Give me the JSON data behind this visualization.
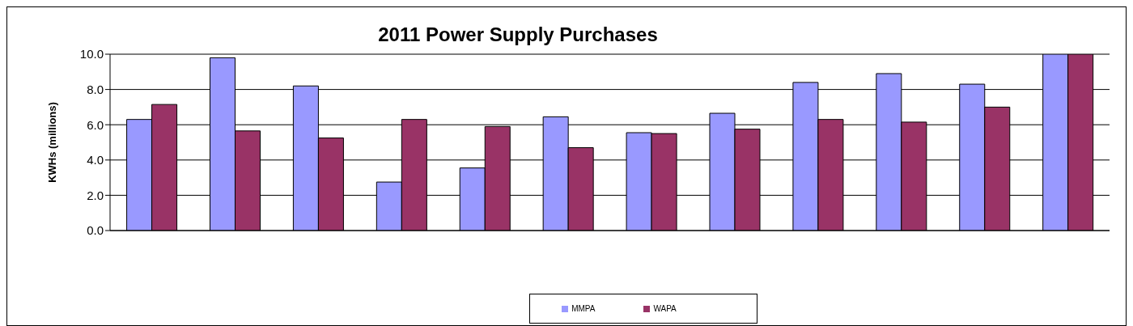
{
  "chart_data": {
    "type": "bar",
    "title": "2011 Power Supply Purchases",
    "ylabel": "KWHs (millions)",
    "categories": [
      null,
      null,
      null,
      null,
      null,
      null,
      null,
      null,
      null,
      null,
      null,
      null
    ],
    "series": [
      {
        "name": "MMPA",
        "color": "#9999ff",
        "values": [
          6.3,
          9.8,
          8.2,
          2.75,
          3.55,
          6.45,
          5.55,
          6.65,
          8.4,
          8.9,
          8.3,
          10
        ]
      },
      {
        "name": "WAPA",
        "color": "#993366",
        "values": [
          7.15,
          5.65,
          5.25,
          6.3,
          5.9,
          4.7,
          5.5,
          5.75,
          6.3,
          6.15,
          7.0,
          10
        ]
      }
    ],
    "ylim": [
      0,
      10
    ],
    "yticks": [
      {
        "value": 0,
        "label": "0.0"
      },
      {
        "value": 2,
        "label": "2.0"
      },
      {
        "value": 4,
        "label": "4.0"
      },
      {
        "value": 6,
        "label": "6.0"
      },
      {
        "value": 8,
        "label": "8.0"
      },
      {
        "value": 10,
        "label": "10.0"
      }
    ],
    "grid": "y",
    "legend": "bottom",
    "tick_labels": "y"
  }
}
